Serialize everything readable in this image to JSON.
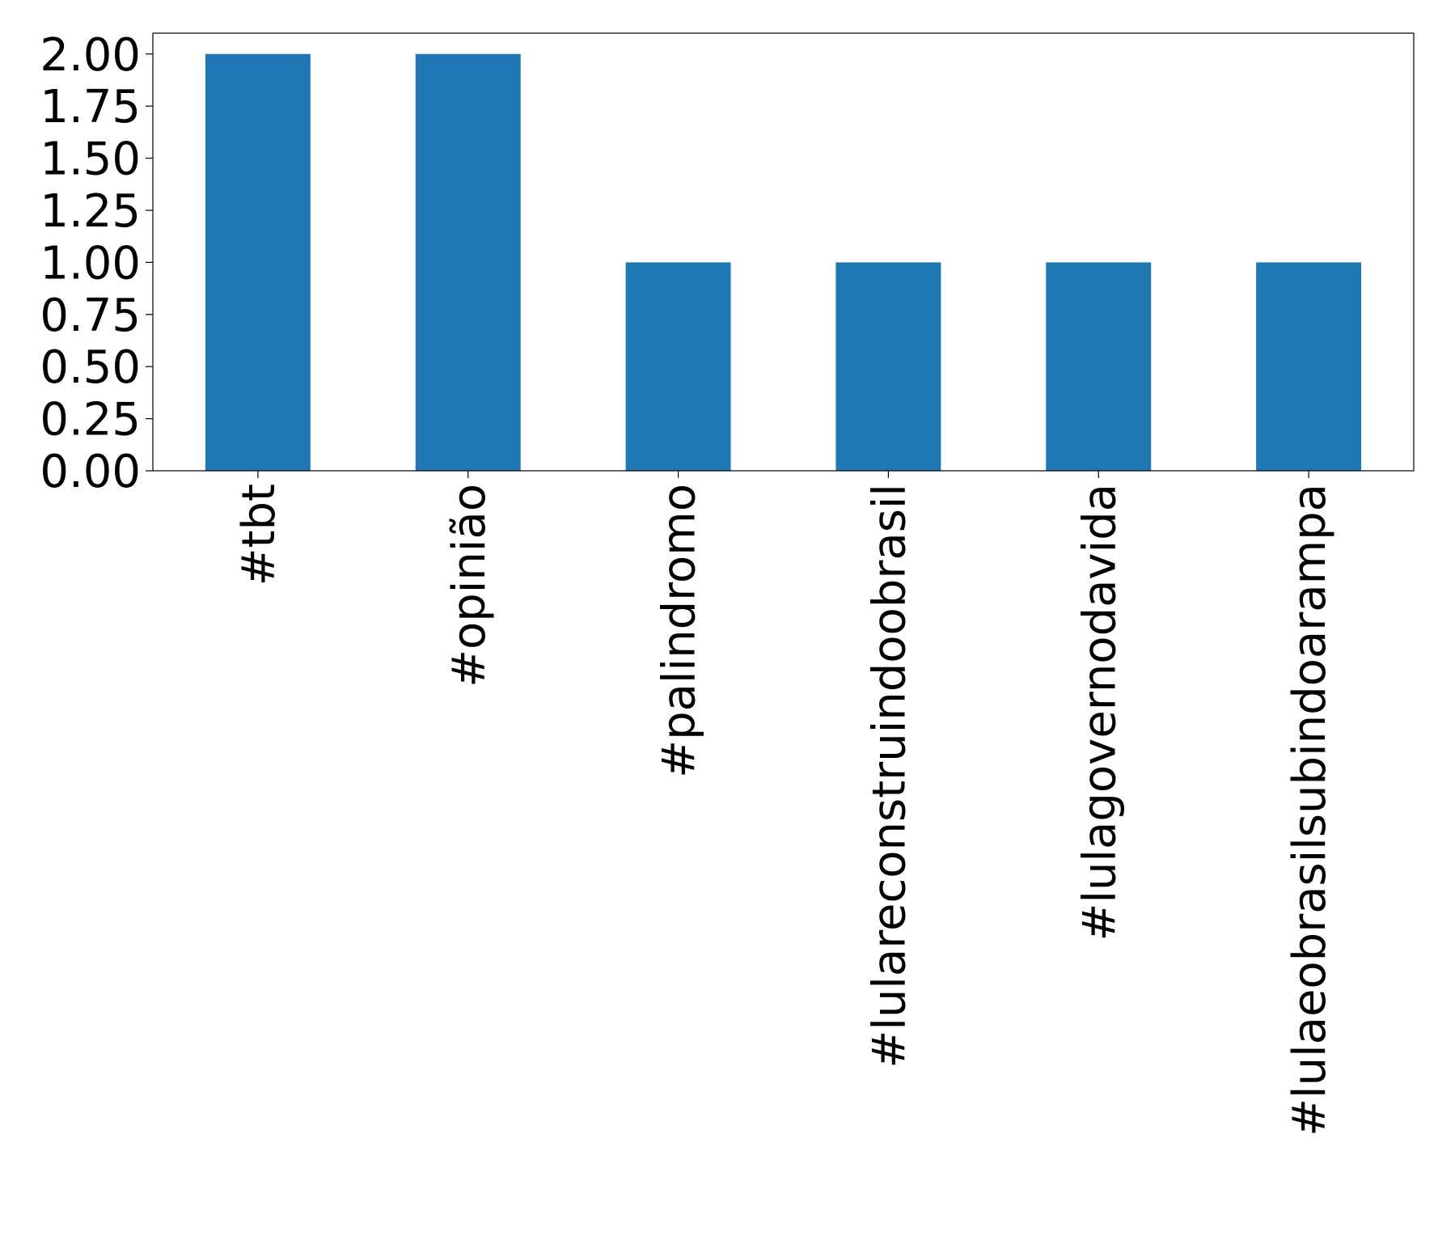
{
  "chart_data": {
    "type": "bar",
    "title": "",
    "xlabel": "",
    "ylabel": "",
    "categories": [
      "#tbt",
      "#opinião",
      "#palindromo",
      "#lulareconstruindoobrasil",
      "#lulagovernodavida",
      "#lulaeobrasilsubindoarampa"
    ],
    "values": [
      2,
      2,
      1,
      1,
      1,
      1
    ],
    "ylim": [
      0,
      2.1
    ],
    "yticks": [
      0.0,
      0.25,
      0.5,
      0.75,
      1.0,
      1.25,
      1.5,
      1.75,
      2.0
    ],
    "ytick_labels": [
      "0.00",
      "0.25",
      "0.50",
      "0.75",
      "1.00",
      "1.25",
      "1.50",
      "1.75",
      "2.00"
    ],
    "grid": false,
    "legend": "none",
    "bar_color": "#1f77b4",
    "x_tick_rotation": "vertical"
  }
}
